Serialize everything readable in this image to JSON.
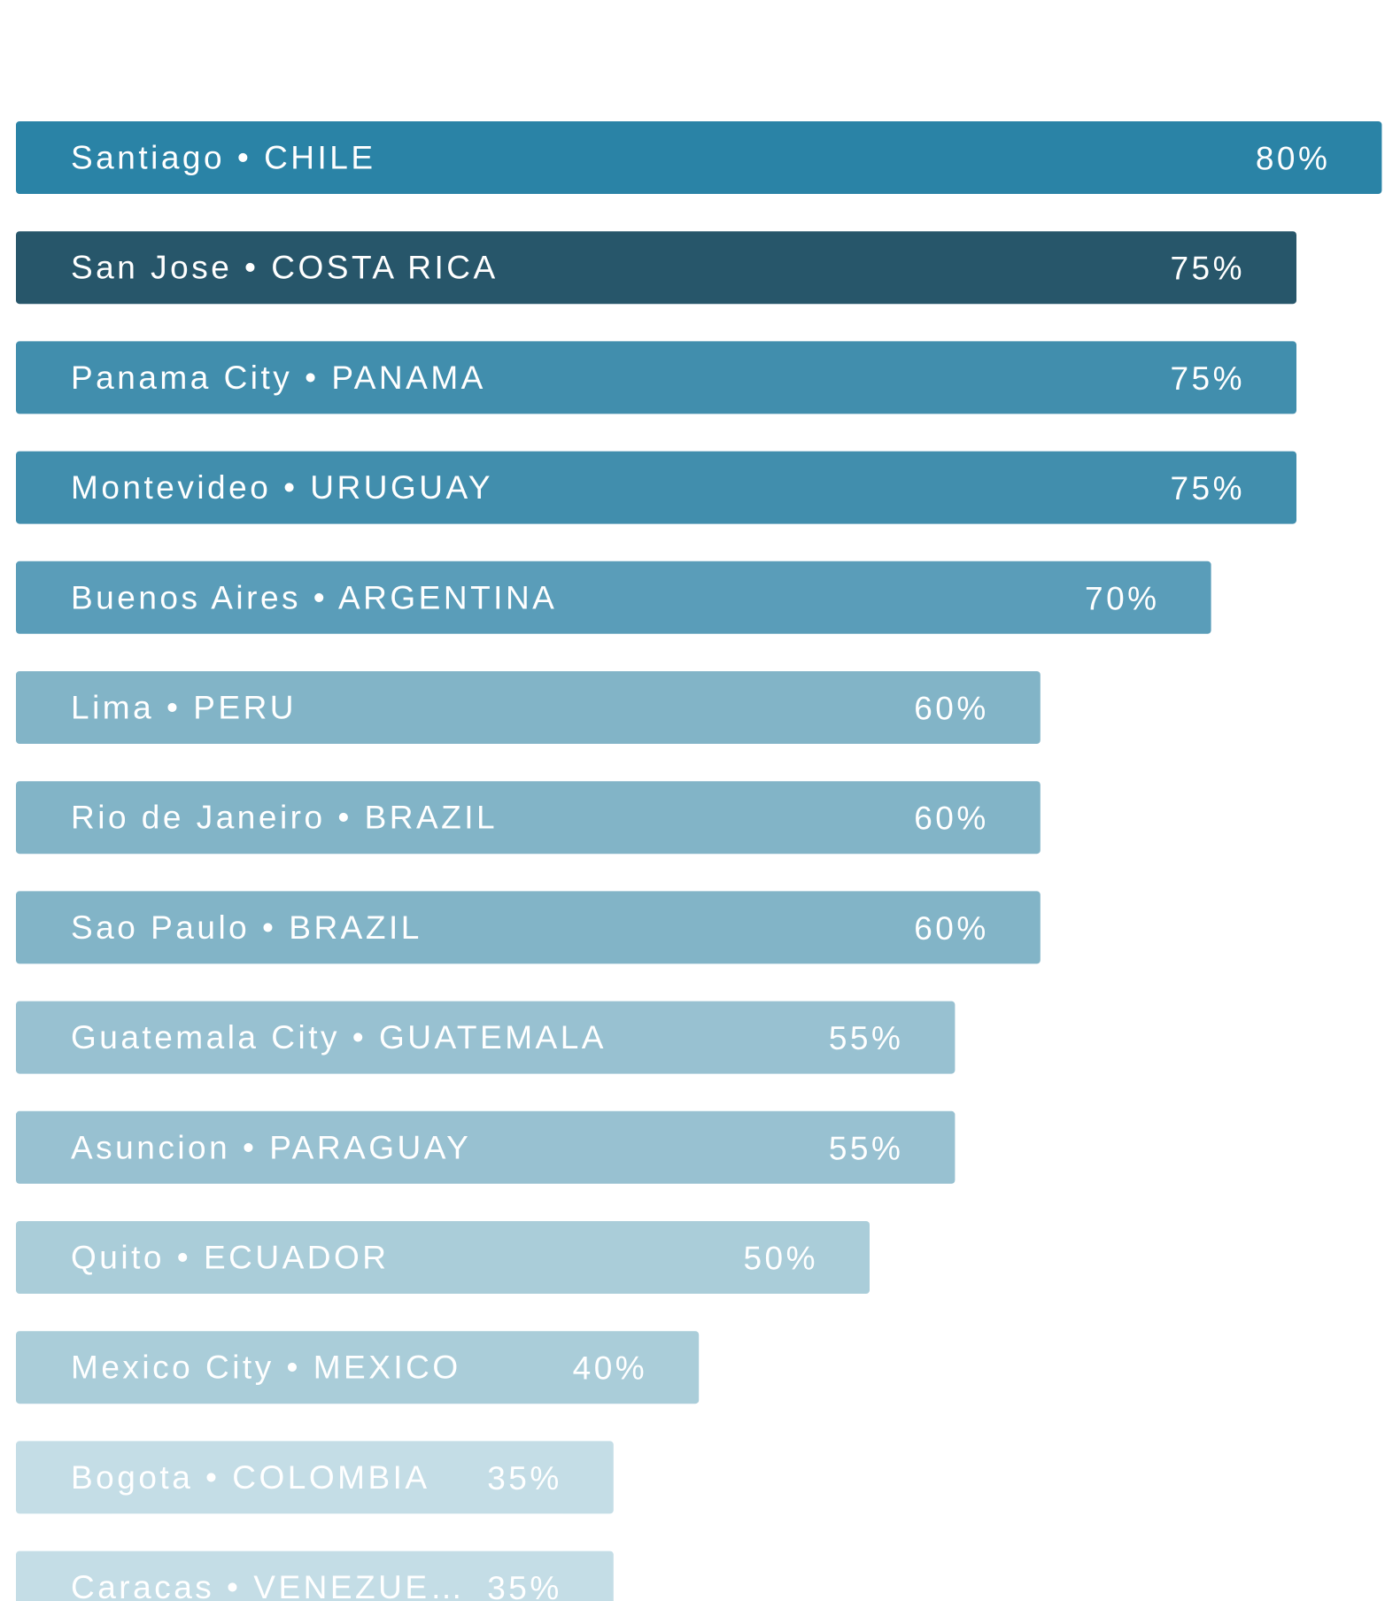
{
  "chart_data": {
    "type": "bar",
    "orientation": "horizontal",
    "categories": [
      "Santiago • CHILE",
      "San Jose • COSTA RICA",
      "Panama City • PANAMA",
      "Montevideo • URUGUAY",
      "Buenos Aires • ARGENTINA",
      "Lima • PERU",
      "Rio de Janeiro • BRAZIL",
      "Sao Paulo • BRAZIL",
      "Guatemala City • GUATEMALA",
      "Asuncion • PARAGUAY",
      "Quito • ECUADOR",
      "Mexico City • MEXICO",
      "Bogota • COLOMBIA",
      "Caracas • VENEZUE…"
    ],
    "values": [
      80,
      75,
      75,
      75,
      70,
      60,
      60,
      60,
      55,
      55,
      50,
      40,
      35,
      35
    ],
    "value_labels": [
      "80%",
      "75%",
      "75%",
      "75%",
      "70%",
      "60%",
      "60%",
      "60%",
      "55%",
      "55%",
      "50%",
      "40%",
      "35%",
      "35%"
    ],
    "colors": [
      "#2a83a6",
      "#27566a",
      "#418ead",
      "#418ead",
      "#5a9db9",
      "#82b4c7",
      "#82b4c7",
      "#82b4c7",
      "#98c1d1",
      "#98c1d1",
      "#aacdd9",
      "#aacdd9",
      "#c4dde6",
      "#c4dde6"
    ]
  }
}
